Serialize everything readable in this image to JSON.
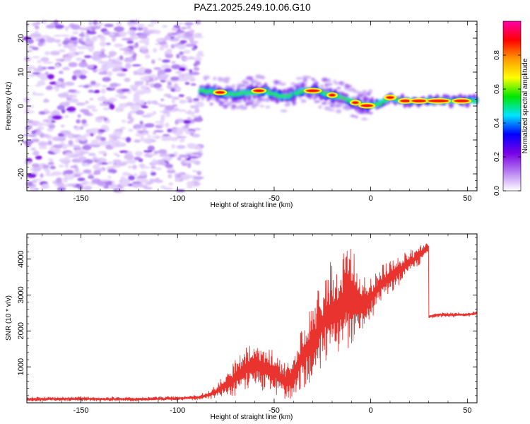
{
  "title": "PAZ1.2025.249.10.06.G10",
  "chart_data": [
    {
      "type": "heatmap",
      "xlabel": "Height of straight line (km)",
      "ylabel": "Frequency (Hz)",
      "xlim": [
        -178,
        55
      ],
      "ylim": [
        -25,
        25
      ],
      "xticks": [
        -150,
        -100,
        -50,
        0,
        50
      ],
      "yticks": [
        -20,
        -10,
        0,
        10,
        20
      ],
      "noise_region_x": [
        -178,
        -88
      ],
      "ridge": [
        {
          "x": -88,
          "y": 4.5
        },
        {
          "x": -80,
          "y": 4.0
        },
        {
          "x": -70,
          "y": 3.5
        },
        {
          "x": -62,
          "y": 4.0
        },
        {
          "x": -55,
          "y": 4.5
        },
        {
          "x": -48,
          "y": 3.0
        },
        {
          "x": -42,
          "y": 3.0
        },
        {
          "x": -35,
          "y": 4.5
        },
        {
          "x": -28,
          "y": 4.5
        },
        {
          "x": -20,
          "y": 3.0
        },
        {
          "x": -12,
          "y": 2.0
        },
        {
          "x": -8,
          "y": 1.0
        },
        {
          "x": 0,
          "y": 0.0
        },
        {
          "x": 4,
          "y": 0.5
        },
        {
          "x": 10,
          "y": 2.5
        },
        {
          "x": 18,
          "y": 1.5
        },
        {
          "x": 30,
          "y": 1.5
        },
        {
          "x": 55,
          "y": 1.5
        }
      ],
      "colorbar": {
        "label": "Normalized spectral amplitude",
        "range": [
          0,
          1
        ],
        "ticks": [
          "0.0",
          "0.2",
          "0.4",
          "0.6",
          "0.8"
        ],
        "colors": [
          "#ffffff",
          "#b77ff2",
          "#7a00e6",
          "#0000ff",
          "#00e5ff",
          "#00e600",
          "#ffff00",
          "#ff9900",
          "#ff0000",
          "#ff00aa"
        ]
      }
    },
    {
      "type": "line",
      "xlabel": "Height of straight line (km)",
      "ylabel": "SNR (10 * v/v)",
      "xlim": [
        -178,
        55
      ],
      "ylim": [
        0,
        4700
      ],
      "xticks": [
        -150,
        -100,
        -50,
        0,
        50
      ],
      "yticks": [
        1000,
        2000,
        3000,
        4000
      ],
      "color": "#e8332f",
      "series": [
        {
          "x": [
            -178,
            -150,
            -120,
            -100,
            -90,
            -85,
            -80,
            -75,
            -70,
            -65,
            -60,
            -55,
            -50,
            -45,
            -40,
            -35,
            -30,
            -25,
            -20,
            -15,
            -10,
            -5,
            0,
            5,
            10,
            15,
            20,
            25,
            29,
            30,
            35,
            40,
            45,
            50,
            55
          ],
          "y": [
            100,
            110,
            100,
            120,
            150,
            200,
            300,
            500,
            700,
            950,
            1100,
            1000,
            850,
            600,
            650,
            1300,
            1700,
            2200,
            2600,
            2600,
            3000,
            2700,
            2900,
            3300,
            3500,
            3700,
            3900,
            4100,
            4300,
            2400,
            2450,
            2450,
            2450,
            2450,
            2500
          ],
          "spread": [
            60,
            60,
            60,
            60,
            70,
            100,
            200,
            350,
            500,
            600,
            700,
            700,
            600,
            500,
            600,
            900,
            1100,
            1300,
            1400,
            1500,
            1500,
            800,
            600,
            500,
            450,
            400,
            350,
            300,
            200,
            60,
            60,
            60,
            60,
            60,
            60
          ]
        }
      ]
    }
  ]
}
